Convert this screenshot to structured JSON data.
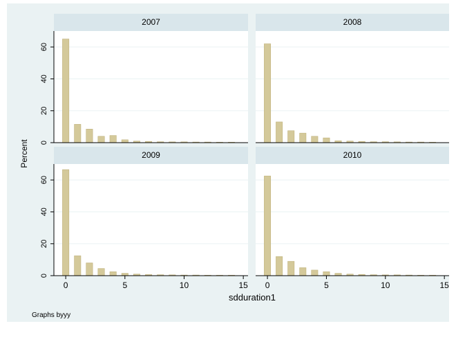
{
  "chart_data": {
    "type": "bar",
    "ylabel": "Percent",
    "xlabel": "sdduration1",
    "note": "Graphs byyy",
    "xlim": [
      -1,
      15.4
    ],
    "ylim": [
      0,
      70
    ],
    "x_ticks": [
      "0",
      "5",
      "10",
      "15"
    ],
    "y_ticks": [
      "0",
      "20",
      "40",
      "60"
    ],
    "colors": {
      "background": "#eaf2f3",
      "plot_background": "#ffffff",
      "panel_header": "#d9e6eb",
      "bar": "#d4c99a",
      "bar_edge": "#b9ab71",
      "gridline": "#eaf2f3",
      "axis": "#000000",
      "text": "#000000"
    },
    "panels": [
      {
        "title": "2007",
        "x": [
          0,
          1,
          2,
          3,
          4,
          5,
          6,
          7,
          8,
          9,
          10,
          11,
          12,
          13,
          14
        ],
        "values": [
          65,
          11.5,
          8.5,
          4,
          4.5,
          1.8,
          1,
          0.8,
          0.6,
          0.5,
          0.5,
          0.4,
          0.4,
          0.3,
          0.3
        ]
      },
      {
        "title": "2008",
        "x": [
          0,
          1,
          2,
          3,
          4,
          5,
          6,
          7,
          8,
          9,
          10,
          11,
          12,
          13,
          14
        ],
        "values": [
          62,
          13,
          7.5,
          6,
          4,
          3,
          1.2,
          1,
          0.8,
          0.6,
          0.6,
          0.5,
          0.4,
          0.4,
          0.3
        ]
      },
      {
        "title": "2009",
        "x": [
          0,
          1,
          2,
          3,
          4,
          5,
          6,
          7,
          8,
          9,
          10,
          11,
          12,
          13,
          14
        ],
        "values": [
          66.5,
          12.5,
          8,
          4.5,
          2.5,
          1.5,
          1,
          0.7,
          0.6,
          0.5,
          0.4,
          0.4,
          0.3,
          0.3,
          0.3
        ]
      },
      {
        "title": "2010",
        "x": [
          0,
          1,
          2,
          3,
          4,
          5,
          6,
          7,
          8,
          9,
          10,
          11,
          12,
          13,
          14
        ],
        "values": [
          62.5,
          12,
          9,
          5,
          3.5,
          2.5,
          1.5,
          1,
          0.8,
          0.6,
          0.5,
          0.5,
          0.4,
          0.3,
          0.3
        ]
      }
    ]
  }
}
